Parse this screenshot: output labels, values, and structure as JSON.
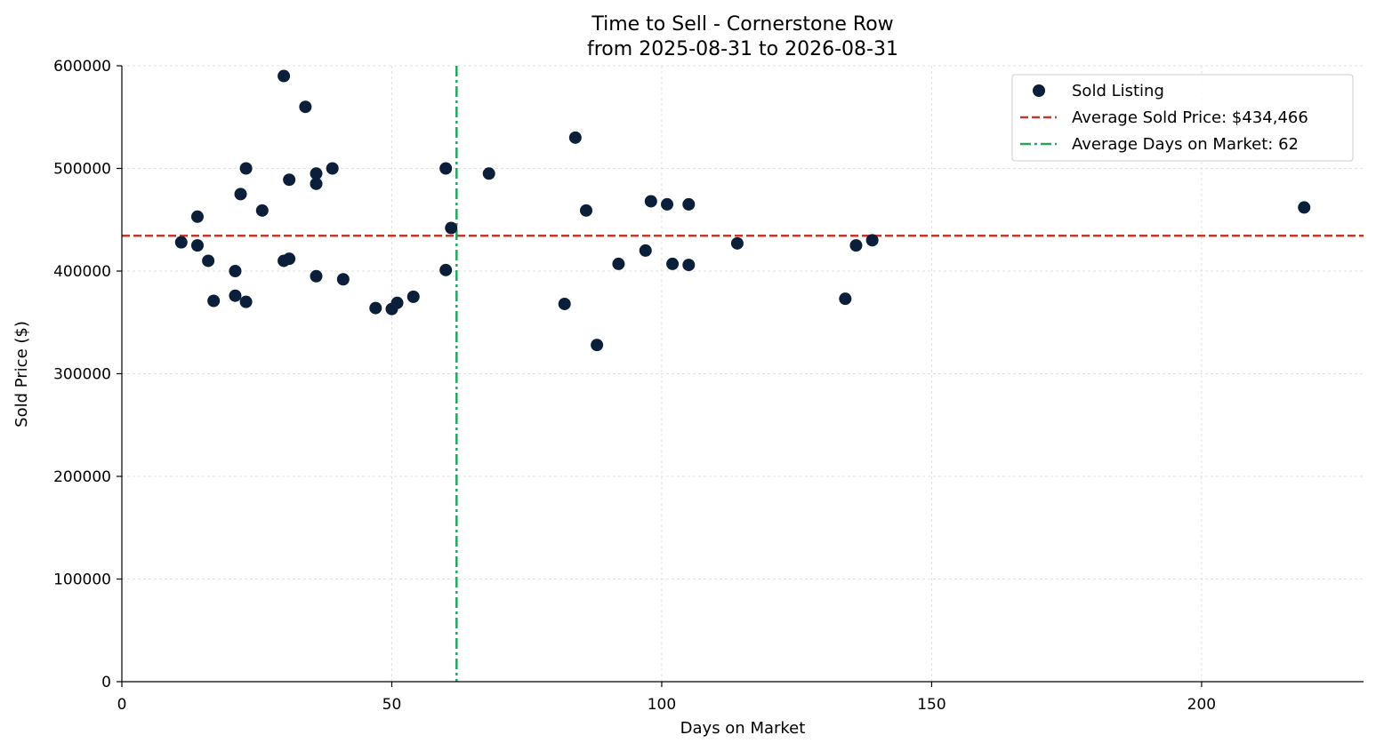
{
  "chart_data": {
    "type": "scatter",
    "title": "Time to Sell - Cornerstone Row",
    "subtitle": "from 2025-08-31 to 2026-08-31",
    "xlabel": "Days on Market",
    "ylabel": "Sold Price ($)",
    "xlim": [
      0,
      230
    ],
    "ylim": [
      0,
      600000
    ],
    "x_ticks": [
      0,
      50,
      100,
      150,
      200
    ],
    "y_ticks": [
      0,
      100000,
      200000,
      300000,
      400000,
      500000,
      600000
    ],
    "x_tick_labels": [
      "0",
      "50",
      "100",
      "150",
      "200"
    ],
    "y_tick_labels": [
      "0",
      "100000",
      "200000",
      "300000",
      "400000",
      "500000",
      "600000"
    ],
    "grid": true,
    "legend_position": "top-right",
    "series": [
      {
        "name": "Sold Listing",
        "color": "#0b1f3a",
        "points": [
          {
            "x": 11,
            "y": 428000
          },
          {
            "x": 14,
            "y": 453000
          },
          {
            "x": 14,
            "y": 425000
          },
          {
            "x": 16,
            "y": 410000
          },
          {
            "x": 17,
            "y": 371000
          },
          {
            "x": 21,
            "y": 400000
          },
          {
            "x": 21,
            "y": 376000
          },
          {
            "x": 22,
            "y": 475000
          },
          {
            "x": 23,
            "y": 500000
          },
          {
            "x": 23,
            "y": 370000
          },
          {
            "x": 26,
            "y": 459000
          },
          {
            "x": 30,
            "y": 590000
          },
          {
            "x": 30,
            "y": 410000
          },
          {
            "x": 31,
            "y": 489000
          },
          {
            "x": 31,
            "y": 412000
          },
          {
            "x": 34,
            "y": 560000
          },
          {
            "x": 36,
            "y": 495000
          },
          {
            "x": 36,
            "y": 485000
          },
          {
            "x": 36,
            "y": 395000
          },
          {
            "x": 39,
            "y": 500000
          },
          {
            "x": 41,
            "y": 392000
          },
          {
            "x": 47,
            "y": 364000
          },
          {
            "x": 50,
            "y": 363000
          },
          {
            "x": 51,
            "y": 369000
          },
          {
            "x": 54,
            "y": 375000
          },
          {
            "x": 60,
            "y": 500000
          },
          {
            "x": 60,
            "y": 401000
          },
          {
            "x": 61,
            "y": 442000
          },
          {
            "x": 68,
            "y": 495000
          },
          {
            "x": 82,
            "y": 368000
          },
          {
            "x": 84,
            "y": 530000
          },
          {
            "x": 86,
            "y": 459000
          },
          {
            "x": 88,
            "y": 328000
          },
          {
            "x": 92,
            "y": 407000
          },
          {
            "x": 97,
            "y": 420000
          },
          {
            "x": 98,
            "y": 468000
          },
          {
            "x": 101,
            "y": 465000
          },
          {
            "x": 102,
            "y": 407000
          },
          {
            "x": 105,
            "y": 465000
          },
          {
            "x": 105,
            "y": 406000
          },
          {
            "x": 114,
            "y": 427000
          },
          {
            "x": 134,
            "y": 373000
          },
          {
            "x": 136,
            "y": 425000
          },
          {
            "x": 139,
            "y": 430000
          },
          {
            "x": 219,
            "y": 462000
          }
        ]
      }
    ],
    "reference_lines": [
      {
        "name": "Average Sold Price: $434,466",
        "orientation": "horizontal",
        "value": 434466,
        "color": "#c0392b",
        "style": "dashed"
      },
      {
        "name": "Average Days on Market: 62",
        "orientation": "vertical",
        "value": 62,
        "color": "#27a35f",
        "style": "dashdot"
      }
    ]
  }
}
